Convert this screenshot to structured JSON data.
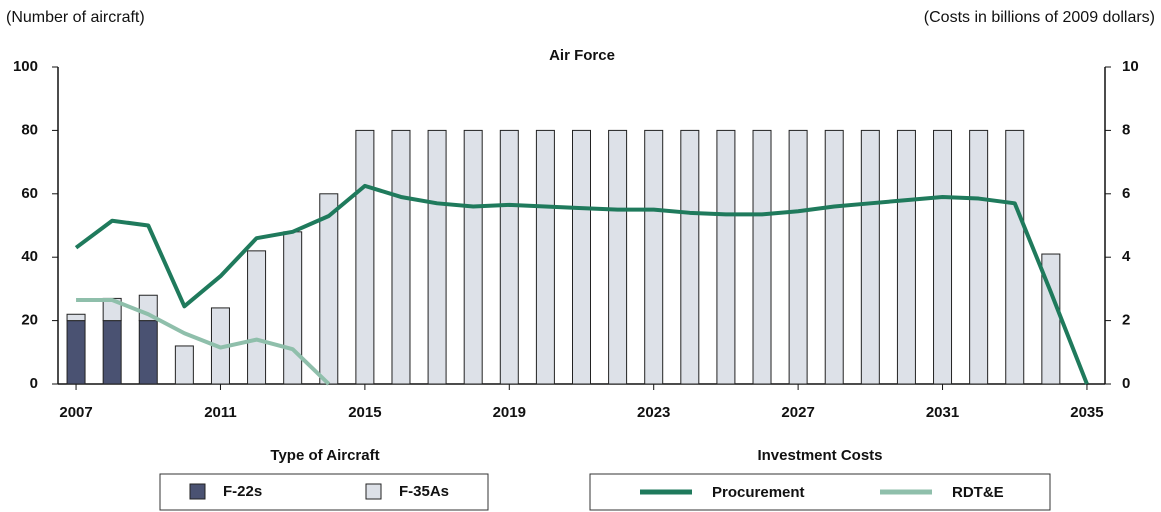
{
  "chart_data": {
    "type": "bar-line",
    "title": "Air Force",
    "ylabel": "(Number of aircraft)",
    "y2label": "(Costs in billions of 2009 dollars)",
    "x": [
      2007,
      2008,
      2009,
      2010,
      2011,
      2012,
      2013,
      2014,
      2015,
      2016,
      2017,
      2018,
      2019,
      2020,
      2021,
      2022,
      2023,
      2024,
      2025,
      2026,
      2027,
      2028,
      2029,
      2030,
      2031,
      2032,
      2033,
      2034,
      2035
    ],
    "xlim": [
      2006.5,
      2035.5
    ],
    "xticks": [
      2007,
      2011,
      2015,
      2019,
      2023,
      2027,
      2031,
      2035
    ],
    "ylim": [
      0,
      100
    ],
    "yticks": [
      0,
      20,
      40,
      60,
      80,
      100
    ],
    "y2lim": [
      0,
      10
    ],
    "y2ticks": [
      0,
      2,
      4,
      6,
      8,
      10
    ],
    "bar_legend_title": "Type of Aircraft",
    "line_legend_title": "Investment Costs",
    "bar_series": [
      {
        "name": "F-22s",
        "color": "#4a5272",
        "values": [
          20,
          20,
          20,
          null,
          null,
          null,
          null,
          null,
          null,
          null,
          null,
          null,
          null,
          null,
          null,
          null,
          null,
          null,
          null,
          null,
          null,
          null,
          null,
          null,
          null,
          null,
          null,
          null,
          null
        ]
      },
      {
        "name": "F-35As",
        "color": "#dde1e8",
        "values": [
          2,
          7,
          8,
          12,
          24,
          42,
          48,
          60,
          80,
          80,
          80,
          80,
          80,
          80,
          80,
          80,
          80,
          80,
          80,
          80,
          80,
          80,
          80,
          80,
          80,
          80,
          80,
          41,
          null
        ]
      }
    ],
    "line_series": [
      {
        "name": "Procurement",
        "color": "#1f7a5c",
        "axis": "y2",
        "values": [
          4.3,
          5.15,
          5.0,
          2.45,
          3.4,
          4.6,
          4.8,
          5.3,
          6.25,
          5.9,
          5.7,
          5.6,
          5.65,
          5.6,
          5.55,
          5.5,
          5.5,
          5.4,
          5.35,
          5.35,
          5.45,
          5.6,
          5.7,
          5.8,
          5.9,
          5.85,
          5.7,
          2.9,
          0
        ]
      },
      {
        "name": "RDT&E",
        "color": "#8fbfab",
        "axis": "y2",
        "values": [
          2.65,
          2.65,
          2.2,
          1.6,
          1.15,
          1.4,
          1.1,
          0,
          null,
          null,
          null,
          null,
          null,
          null,
          null,
          null,
          null,
          null,
          null,
          null,
          null,
          null,
          null,
          null,
          null,
          null,
          null,
          null,
          null
        ]
      }
    ]
  }
}
